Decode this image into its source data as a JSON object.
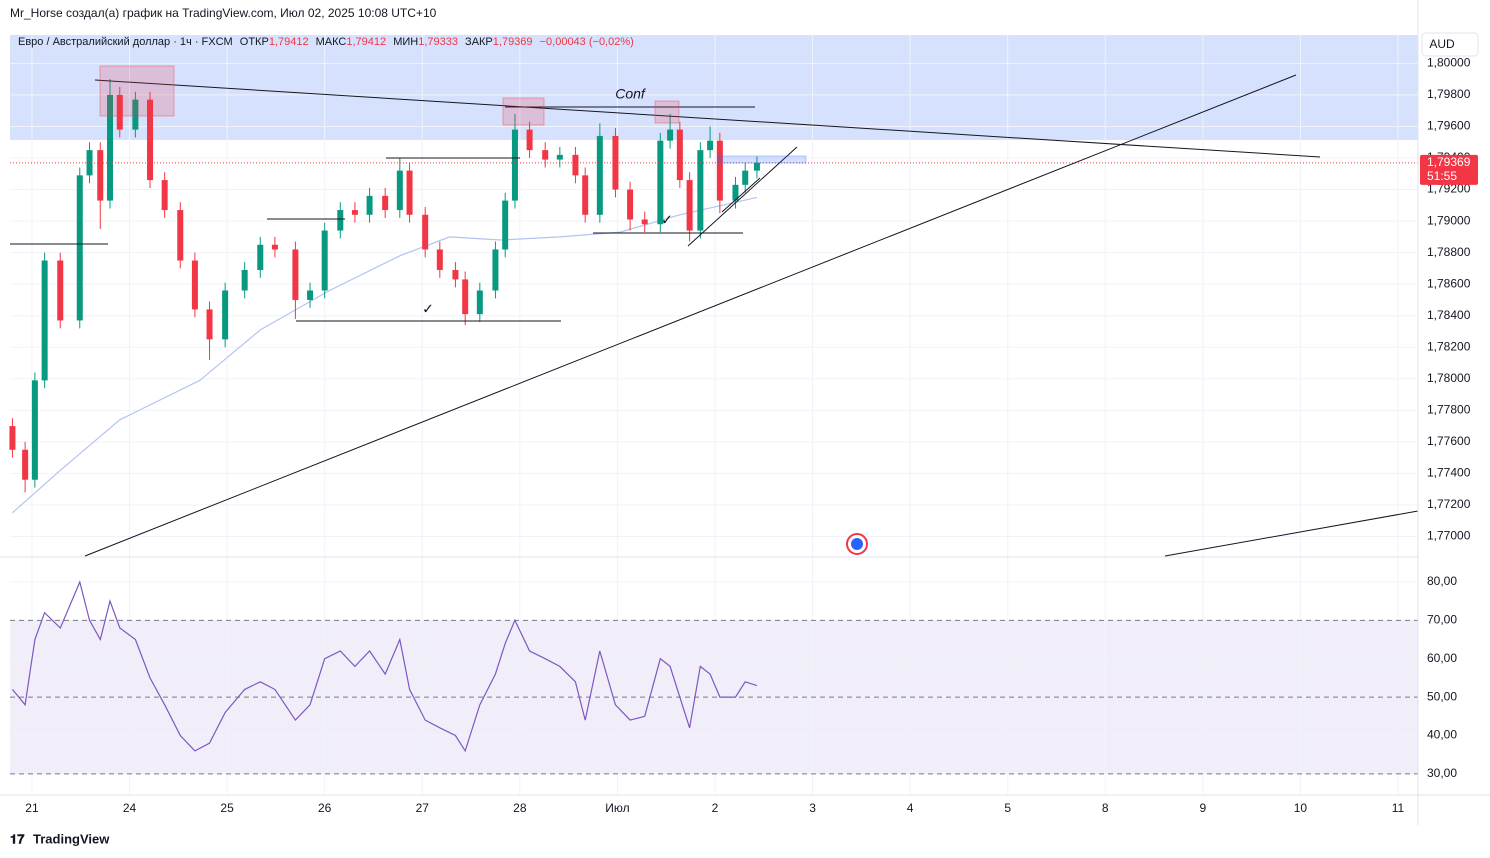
{
  "header": {
    "credit": "Mr_Horse создал(а) график на TradingView.com, Июл 02, 2025 10:08 UTC+10",
    "legend": [
      "Евро / Австралийский доллар · 1ч · FXCM",
      "ОТКР",
      "1,79412",
      "МАКС",
      "1,79412",
      "МИН",
      "1,79333",
      "ЗАКР",
      "1,79369",
      "−0,00043 (−0,02%)"
    ]
  },
  "annotations": [
    "Conf",
    "✓",
    "✓"
  ],
  "footer": "TradingView",
  "chart_data": {
    "type": "candlestick",
    "currency": "AUD",
    "grid": true,
    "up_color": "#089981",
    "down_color": "#f23645",
    "x": [
      -0.2,
      -0.07,
      0.03,
      0.13,
      0.29,
      0.49,
      0.59,
      0.7,
      0.8,
      0.9,
      1.06,
      1.21,
      1.36,
      1.52,
      1.67,
      1.82,
      1.98,
      2.18,
      2.34,
      2.49,
      2.7,
      2.85,
      3.0,
      3.16,
      3.31,
      3.46,
      3.62,
      3.77,
      3.87,
      4.03,
      4.18,
      4.34,
      4.44,
      4.59,
      4.75,
      4.85,
      4.95,
      5.1,
      5.26,
      5.41,
      5.57,
      5.67,
      5.82,
      5.98,
      6.13,
      6.28,
      6.44,
      6.54,
      6.64,
      6.74,
      6.85,
      6.95,
      7.05,
      7.21,
      7.31,
      7.43
    ],
    "open": [
      1.777,
      1.7755,
      1.7736,
      1.7799,
      1.7875,
      1.7837,
      1.7929,
      1.7945,
      1.7913,
      1.798,
      1.7958,
      1.7977,
      1.7926,
      1.7907,
      1.7875,
      1.7844,
      1.7825,
      1.7856,
      1.7869,
      1.7885,
      1.7882,
      1.785,
      1.7856,
      1.7894,
      1.7907,
      1.7904,
      1.7916,
      1.7907,
      1.7932,
      1.7904,
      1.7882,
      1.7869,
      1.7863,
      1.7841,
      1.7856,
      1.7882,
      1.7913,
      1.7958,
      1.7945,
      1.7939,
      1.7942,
      1.7929,
      1.7904,
      1.7954,
      1.792,
      1.7901,
      1.7898,
      1.7951,
      1.7958,
      1.7926,
      1.7894,
      1.7945,
      1.7951,
      1.7913,
      1.7923,
      1.7932
    ],
    "high": [
      1.7775,
      1.776,
      1.7804,
      1.788,
      1.788,
      1.7934,
      1.795,
      1.795,
      1.799,
      1.7985,
      1.7982,
      1.7982,
      1.7931,
      1.7912,
      1.788,
      1.7849,
      1.7861,
      1.7874,
      1.789,
      1.789,
      1.7887,
      1.7861,
      1.7899,
      1.7912,
      1.7912,
      1.7921,
      1.7921,
      1.794,
      1.7937,
      1.7909,
      1.7887,
      1.7874,
      1.7868,
      1.7861,
      1.7887,
      1.7918,
      1.7968,
      1.7963,
      1.795,
      1.7947,
      1.7947,
      1.7934,
      1.7962,
      1.7959,
      1.7925,
      1.7906,
      1.7956,
      1.7968,
      1.7963,
      1.7931,
      1.795,
      1.796,
      1.7956,
      1.7928,
      1.7937,
      1.7941
    ],
    "low": [
      1.775,
      1.7728,
      1.7731,
      1.7794,
      1.7832,
      1.7832,
      1.7924,
      1.7895,
      1.7908,
      1.7953,
      1.7953,
      1.7921,
      1.7902,
      1.787,
      1.7839,
      1.7812,
      1.782,
      1.7851,
      1.7864,
      1.7877,
      1.7838,
      1.7845,
      1.7851,
      1.7889,
      1.7899,
      1.7899,
      1.7902,
      1.7902,
      1.7899,
      1.7877,
      1.7864,
      1.7858,
      1.7834,
      1.7836,
      1.7851,
      1.7877,
      1.7908,
      1.794,
      1.7934,
      1.7934,
      1.7924,
      1.7899,
      1.7899,
      1.7915,
      1.7894,
      1.7893,
      1.7893,
      1.7946,
      1.7921,
      1.7887,
      1.7889,
      1.794,
      1.7905,
      1.7908,
      1.7918,
      1.7927
    ],
    "close": [
      1.7755,
      1.7736,
      1.7799,
      1.7875,
      1.7837,
      1.7929,
      1.7945,
      1.7913,
      1.798,
      1.7958,
      1.7977,
      1.7926,
      1.7907,
      1.7875,
      1.7844,
      1.7825,
      1.7856,
      1.7869,
      1.7885,
      1.7882,
      1.785,
      1.7856,
      1.7894,
      1.7907,
      1.7904,
      1.7916,
      1.7907,
      1.7932,
      1.7904,
      1.7882,
      1.7869,
      1.7863,
      1.7841,
      1.7856,
      1.7882,
      1.7913,
      1.7958,
      1.7945,
      1.7939,
      1.7942,
      1.7929,
      1.7904,
      1.7954,
      1.792,
      1.7901,
      1.7898,
      1.7951,
      1.7958,
      1.7926,
      1.7894,
      1.7945,
      1.7951,
      1.7913,
      1.7923,
      1.7932,
      1.7937
    ],
    "ma": {
      "color": "#b2c4f0",
      "x": [
        -0.2,
        0.29,
        0.9,
        1.72,
        2.34,
        3.05,
        3.77,
        4.28,
        4.8,
        5.41,
        6.03,
        6.64,
        7.43
      ],
      "values": [
        1.7715,
        1.7742,
        1.7774,
        1.7799,
        1.7831,
        1.7856,
        1.7878,
        1.789,
        1.7888,
        1.789,
        1.7893,
        1.7904,
        1.7915
      ]
    },
    "last_price": {
      "value": 1.79369,
      "label": "1,79369"
    },
    "countdown": "51:55",
    "xlim": [
      -0.225,
      14.205
    ],
    "xticks": [
      {
        "value": 0,
        "label": "21"
      },
      {
        "value": 1,
        "label": "24"
      },
      {
        "value": 2,
        "label": "25"
      },
      {
        "value": 3,
        "label": "26"
      },
      {
        "value": 4,
        "label": "27"
      },
      {
        "value": 5,
        "label": "28"
      },
      {
        "value": 6,
        "label": "Июл"
      },
      {
        "value": 7,
        "label": "2"
      },
      {
        "value": 8,
        "label": "3"
      },
      {
        "value": 9,
        "label": "4"
      },
      {
        "value": 10,
        "label": "5"
      },
      {
        "value": 11,
        "label": "8"
      },
      {
        "value": 12,
        "label": "9"
      },
      {
        "value": 13,
        "label": "10"
      },
      {
        "value": 14,
        "label": "11"
      }
    ],
    "ylim": [
      1.7687,
      1.8018
    ],
    "yticks": [
      {
        "value": 1.8,
        "label": "1,80000"
      },
      {
        "value": 1.798,
        "label": "1,79800"
      },
      {
        "value": 1.796,
        "label": "1,79600"
      },
      {
        "value": 1.794,
        "label": "1,79400"
      },
      {
        "value": 1.792,
        "label": "1,79200"
      },
      {
        "value": 1.79,
        "label": "1,79000"
      },
      {
        "value": 1.788,
        "label": "1,78800"
      },
      {
        "value": 1.786,
        "label": "1,78600"
      },
      {
        "value": 1.784,
        "label": "1,78400"
      },
      {
        "value": 1.782,
        "label": "1,78200"
      },
      {
        "value": 1.78,
        "label": "1,78000"
      },
      {
        "value": 1.778,
        "label": "1,77800"
      },
      {
        "value": 1.776,
        "label": "1,77600"
      },
      {
        "value": 1.774,
        "label": "1,77400"
      },
      {
        "value": 1.772,
        "label": "1,77200"
      },
      {
        "value": 1.77,
        "label": "1,77000"
      }
    ],
    "rsi": {
      "color": "#7e57c2",
      "values": [
        52,
        48,
        65,
        72,
        68,
        80,
        70,
        65,
        75,
        68,
        65,
        55,
        48,
        40,
        36,
        38,
        46,
        52,
        54,
        52,
        44,
        48,
        60,
        62,
        58,
        62,
        56,
        65,
        52,
        44,
        42,
        40,
        36,
        48,
        56,
        64,
        70,
        62,
        60,
        58,
        54,
        44,
        62,
        48,
        44,
        45,
        60,
        58,
        50,
        42,
        58,
        56,
        50,
        50,
        54,
        53
      ],
      "ylim": [
        24.5,
        86.5
      ],
      "yticks": [
        {
          "value": 80,
          "label": "80,00"
        },
        {
          "value": 70,
          "label": "70,00"
        },
        {
          "value": 60,
          "label": "60,00"
        },
        {
          "value": 50,
          "label": "50,00"
        },
        {
          "value": 40,
          "label": "40,00"
        },
        {
          "value": 30,
          "label": "30,00"
        }
      ],
      "bands": [
        70,
        50,
        30
      ]
    }
  }
}
